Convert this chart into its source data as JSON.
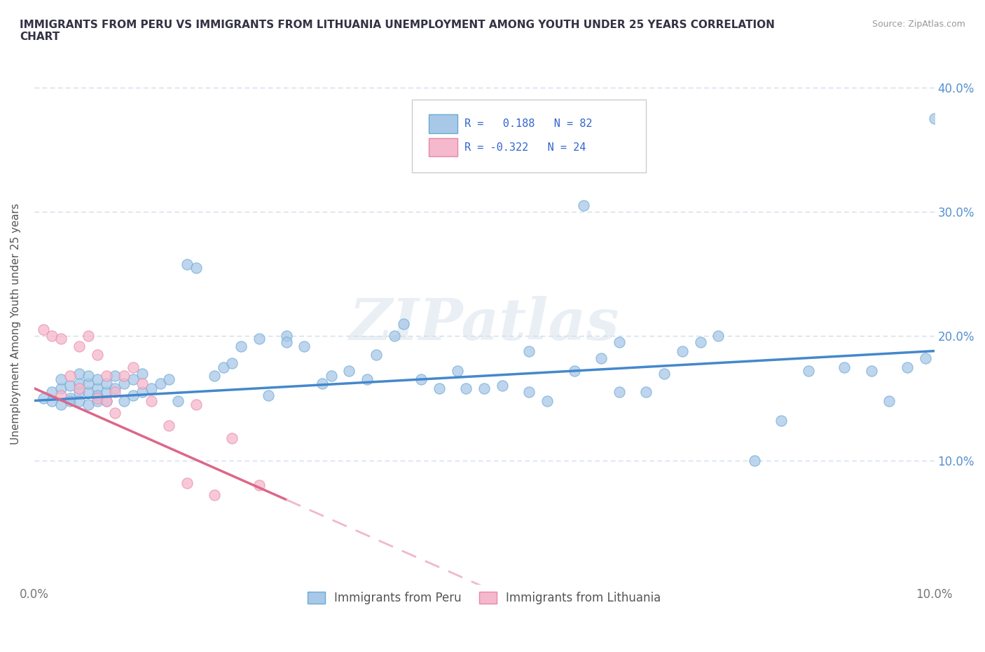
{
  "title": "IMMIGRANTS FROM PERU VS IMMIGRANTS FROM LITHUANIA UNEMPLOYMENT AMONG YOUTH UNDER 25 YEARS CORRELATION\nCHART",
  "source_text": "Source: ZipAtlas.com",
  "ylabel": "Unemployment Among Youth under 25 years",
  "xlim": [
    0.0,
    0.1
  ],
  "ylim": [
    0.0,
    0.42
  ],
  "xticks": [
    0.0,
    0.02,
    0.04,
    0.06,
    0.08,
    0.1
  ],
  "yticks": [
    0.1,
    0.2,
    0.3,
    0.4
  ],
  "xticklabels": [
    "0.0%",
    "",
    "",
    "",
    "",
    "10.0%"
  ],
  "yticklabels": [
    "10.0%",
    "20.0%",
    "30.0%",
    "40.0%"
  ],
  "peru_color": "#a8c8e8",
  "peru_edge_color": "#6aaad4",
  "lithuania_color": "#f5b8cc",
  "lithuania_edge_color": "#e888a8",
  "peru_line_color": "#4488cc",
  "lithuania_line_color": "#dd6688",
  "lithuania_line_dashed_color": "#f0b8cc",
  "R_peru": 0.188,
  "N_peru": 82,
  "R_lithuania": -0.322,
  "N_lithuania": 24,
  "watermark": "ZIPatlas",
  "background_color": "#ffffff",
  "grid_color": "#c8d8e8",
  "peru_line_intercept": 0.148,
  "peru_line_slope": 0.4,
  "lith_line_intercept": 0.158,
  "lith_line_slope": -3.2,
  "peru_x": [
    0.001,
    0.002,
    0.002,
    0.003,
    0.003,
    0.003,
    0.004,
    0.004,
    0.004,
    0.005,
    0.005,
    0.005,
    0.005,
    0.006,
    0.006,
    0.006,
    0.006,
    0.007,
    0.007,
    0.007,
    0.007,
    0.008,
    0.008,
    0.008,
    0.009,
    0.009,
    0.01,
    0.01,
    0.011,
    0.011,
    0.012,
    0.012,
    0.013,
    0.014,
    0.015,
    0.016,
    0.017,
    0.018,
    0.02,
    0.021,
    0.022,
    0.023,
    0.025,
    0.026,
    0.028,
    0.03,
    0.032,
    0.033,
    0.035,
    0.037,
    0.04,
    0.041,
    0.043,
    0.045,
    0.047,
    0.05,
    0.052,
    0.055,
    0.057,
    0.06,
    0.061,
    0.063,
    0.065,
    0.068,
    0.07,
    0.072,
    0.074,
    0.076,
    0.08,
    0.083,
    0.086,
    0.09,
    0.093,
    0.095,
    0.097,
    0.099,
    0.1,
    0.065,
    0.055,
    0.048,
    0.038,
    0.028
  ],
  "peru_y": [
    0.15,
    0.148,
    0.155,
    0.145,
    0.158,
    0.165,
    0.15,
    0.16,
    0.148,
    0.155,
    0.162,
    0.148,
    0.17,
    0.145,
    0.155,
    0.162,
    0.168,
    0.148,
    0.158,
    0.165,
    0.152,
    0.155,
    0.162,
    0.148,
    0.158,
    0.168,
    0.148,
    0.162,
    0.152,
    0.165,
    0.155,
    0.17,
    0.158,
    0.162,
    0.165,
    0.148,
    0.258,
    0.255,
    0.168,
    0.175,
    0.178,
    0.192,
    0.198,
    0.152,
    0.2,
    0.192,
    0.162,
    0.168,
    0.172,
    0.165,
    0.2,
    0.21,
    0.165,
    0.158,
    0.172,
    0.158,
    0.16,
    0.188,
    0.148,
    0.172,
    0.305,
    0.182,
    0.195,
    0.155,
    0.17,
    0.188,
    0.195,
    0.2,
    0.1,
    0.132,
    0.172,
    0.175,
    0.172,
    0.148,
    0.175,
    0.182,
    0.375,
    0.155,
    0.155,
    0.158,
    0.185,
    0.195
  ],
  "lithuania_x": [
    0.001,
    0.002,
    0.003,
    0.003,
    0.004,
    0.005,
    0.005,
    0.006,
    0.007,
    0.007,
    0.008,
    0.008,
    0.009,
    0.009,
    0.01,
    0.011,
    0.012,
    0.013,
    0.015,
    0.017,
    0.018,
    0.02,
    0.022,
    0.025
  ],
  "lithuania_y": [
    0.205,
    0.2,
    0.152,
    0.198,
    0.168,
    0.158,
    0.192,
    0.2,
    0.185,
    0.15,
    0.148,
    0.168,
    0.138,
    0.155,
    0.168,
    0.175,
    0.162,
    0.148,
    0.128,
    0.082,
    0.145,
    0.072,
    0.118,
    0.08
  ]
}
